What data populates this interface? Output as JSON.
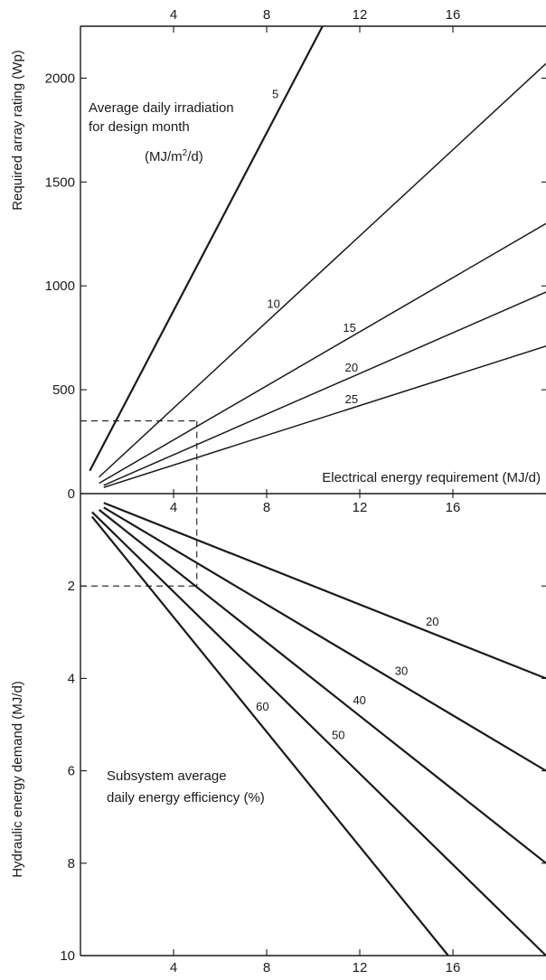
{
  "chart_data": [
    {
      "type": "line",
      "panel": "upper",
      "title_lines": [
        "Average daily irradiation",
        "for design month"
      ],
      "title_unit_prefix": "(MJ/m",
      "title_unit_sup": "2",
      "title_unit_suffix": "/d)",
      "xlabel": "Electrical energy requirement (MJ/d)",
      "ylabel": "Required array rating (Wp)",
      "xlim": [
        0,
        20
      ],
      "ylim": [
        0,
        2250
      ],
      "x_ticks": [
        4,
        8,
        12,
        16
      ],
      "x_tick_labels_top": [
        "4",
        "8",
        "12",
        "16"
      ],
      "x_tick_labels_mid": [
        "4",
        "8",
        "12",
        "16"
      ],
      "y_ticks": [
        0,
        500,
        1000,
        1500,
        2000
      ],
      "y_tick_labels": [
        "0",
        "500",
        "1000",
        "1500",
        "2000"
      ],
      "series": [
        {
          "label": "5",
          "x": [
            0.4,
            10.4
          ],
          "y": [
            110,
            2250
          ],
          "thick": true
        },
        {
          "label": "10",
          "x": [
            0.8,
            20.0
          ],
          "y": [
            80,
            2070
          ],
          "thick": false
        },
        {
          "label": "15",
          "x": [
            0.8,
            20.0
          ],
          "y": [
            50,
            1300
          ],
          "thick": false
        },
        {
          "label": "20",
          "x": [
            1.0,
            20.0
          ],
          "y": [
            40,
            970
          ],
          "thick": false
        },
        {
          "label": "25",
          "x": [
            1.0,
            20.0
          ],
          "y": [
            30,
            710
          ],
          "thick": false
        }
      ],
      "guide": {
        "x": 5,
        "y": 350
      }
    },
    {
      "type": "line",
      "panel": "lower",
      "title_lines": [
        "Subsystem average",
        "daily energy efficiency (%)"
      ],
      "xlabel": "",
      "ylabel": "Hydraulic energy demand (MJ/d)",
      "xlim": [
        0,
        20
      ],
      "ylim": [
        0,
        10
      ],
      "y_inverted": true,
      "x_ticks": [
        4,
        8,
        12,
        16
      ],
      "x_tick_labels_bottom": [
        "4",
        "8",
        "12",
        "16"
      ],
      "y_ticks": [
        2,
        4,
        6,
        8,
        10
      ],
      "y_tick_labels": [
        "2",
        "4",
        "6",
        "8",
        "10"
      ],
      "series": [
        {
          "label": "20",
          "x": [
            1.0,
            20.0
          ],
          "y": [
            0.2,
            4.0
          ]
        },
        {
          "label": "30",
          "x": [
            1.0,
            20.0
          ],
          "y": [
            0.3,
            6.0
          ]
        },
        {
          "label": "40",
          "x": [
            0.8,
            20.0
          ],
          "y": [
            0.35,
            8.0
          ]
        },
        {
          "label": "50",
          "x": [
            0.5,
            20.0
          ],
          "y": [
            0.4,
            10.0
          ]
        },
        {
          "label": "60",
          "x": [
            0.5,
            15.8
          ],
          "y": [
            0.5,
            10.0
          ]
        }
      ],
      "guide": {
        "x": 5,
        "y": 2
      }
    }
  ]
}
